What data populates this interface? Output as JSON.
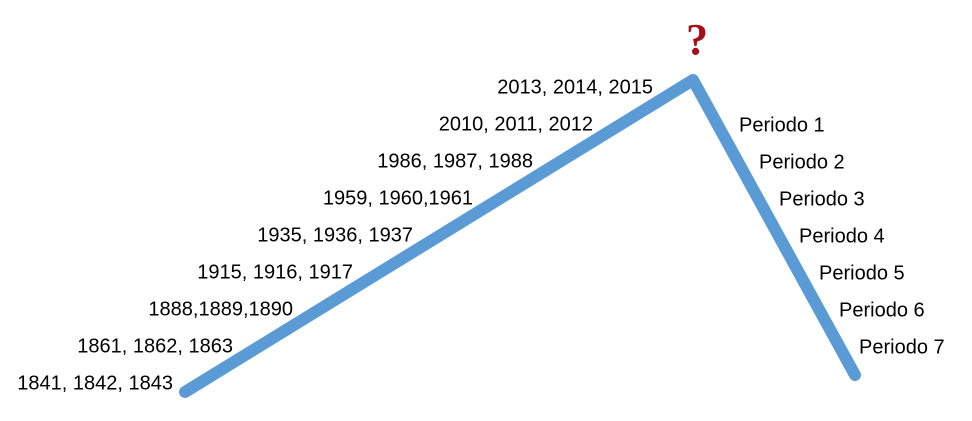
{
  "question_mark": "?",
  "left_labels": [
    "2013, 2014, 2015",
    "2010, 2011, 2012",
    "1986, 1987, 1988",
    "1959, 1960,1961",
    "1935, 1936, 1937",
    "1915, 1916, 1917",
    "1888,1889,1890",
    "1861, 1862, 1863",
    "1841, 1842, 1843"
  ],
  "right_labels": [
    "Periodo 1",
    "Periodo 2",
    "Periodo 3",
    "Periodo 4",
    "Periodo 5",
    "Periodo 6",
    "Periodo 7"
  ]
}
